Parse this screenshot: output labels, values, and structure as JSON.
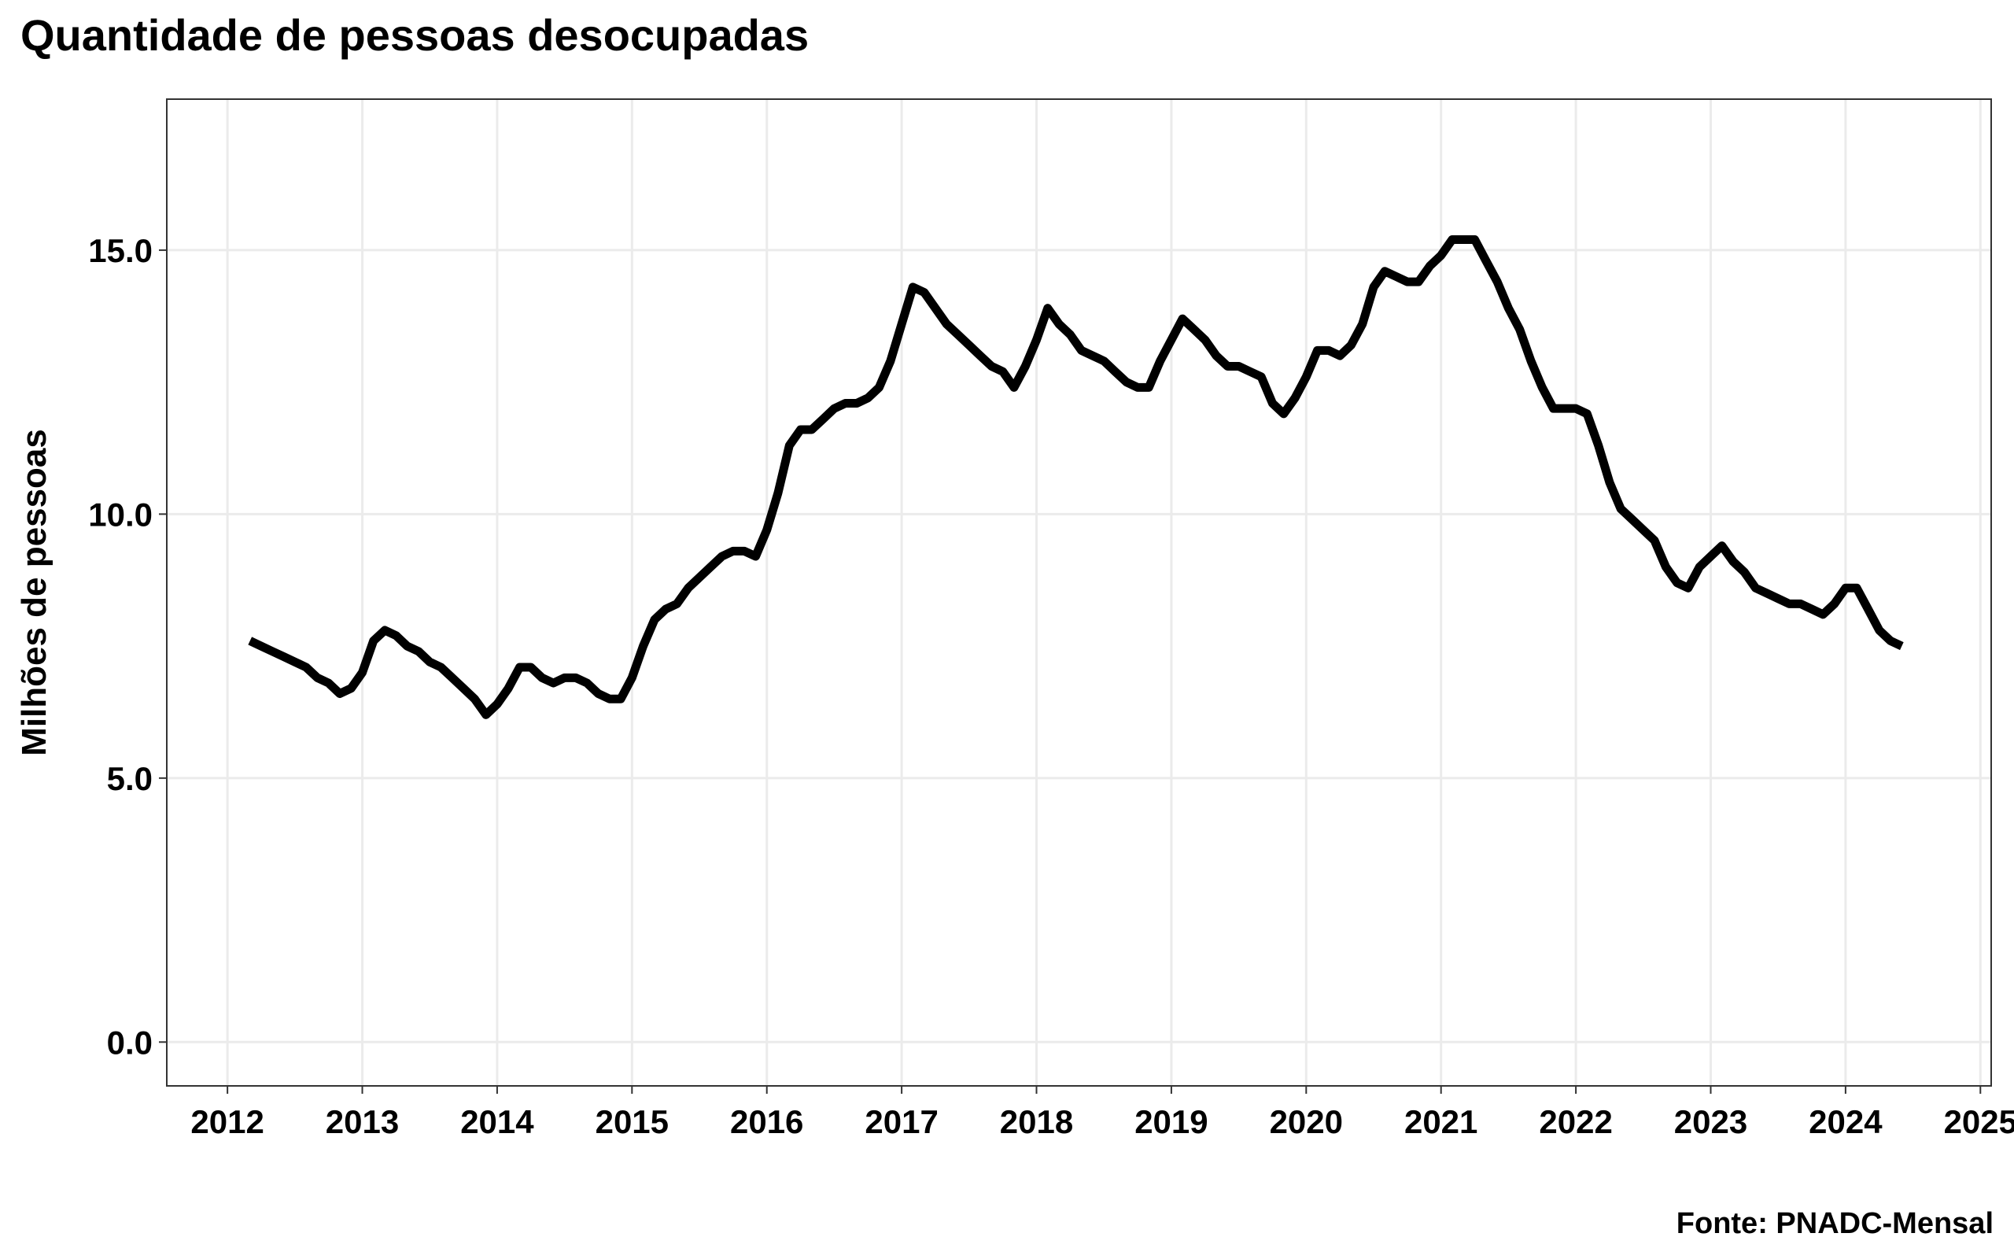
{
  "chart_data": {
    "type": "line",
    "title": "Quantidade de pessoas desocupadas",
    "y_label": "Milhões de pessoas",
    "source": "Fonte: PNADC-Mensal",
    "grid": true,
    "series": [
      {
        "color": "#000000",
        "x": [
          2012.167,
          2012.25,
          2012.333,
          2012.417,
          2012.5,
          2012.583,
          2012.667,
          2012.75,
          2012.833,
          2012.917,
          2013.0,
          2013.083,
          2013.167,
          2013.25,
          2013.333,
          2013.417,
          2013.5,
          2013.583,
          2013.667,
          2013.75,
          2013.833,
          2013.917,
          2014.0,
          2014.083,
          2014.167,
          2014.25,
          2014.333,
          2014.417,
          2014.5,
          2014.583,
          2014.667,
          2014.75,
          2014.833,
          2014.917,
          2015.0,
          2015.083,
          2015.167,
          2015.25,
          2015.333,
          2015.417,
          2015.5,
          2015.583,
          2015.667,
          2015.75,
          2015.833,
          2015.917,
          2016.0,
          2016.083,
          2016.167,
          2016.25,
          2016.333,
          2016.417,
          2016.5,
          2016.583,
          2016.667,
          2016.75,
          2016.833,
          2016.917,
          2017.0,
          2017.083,
          2017.167,
          2017.25,
          2017.333,
          2017.417,
          2017.5,
          2017.583,
          2017.667,
          2017.75,
          2017.833,
          2017.917,
          2018.0,
          2018.083,
          2018.167,
          2018.25,
          2018.333,
          2018.417,
          2018.5,
          2018.583,
          2018.667,
          2018.75,
          2018.833,
          2018.917,
          2019.0,
          2019.083,
          2019.167,
          2019.25,
          2019.333,
          2019.417,
          2019.5,
          2019.583,
          2019.667,
          2019.75,
          2019.833,
          2019.917,
          2020.0,
          2020.083,
          2020.167,
          2020.25,
          2020.333,
          2020.417,
          2020.5,
          2020.583,
          2020.667,
          2020.75,
          2020.833,
          2020.917,
          2021.0,
          2021.083,
          2021.167,
          2021.25,
          2021.333,
          2021.417,
          2021.5,
          2021.583,
          2021.667,
          2021.75,
          2021.833,
          2021.917,
          2022.0,
          2022.083,
          2022.167,
          2022.25,
          2022.333,
          2022.417,
          2022.5,
          2022.583,
          2022.667,
          2022.75,
          2022.833,
          2022.917,
          2023.0,
          2023.083,
          2023.167,
          2023.25,
          2023.333,
          2023.417,
          2023.5,
          2023.583,
          2023.667,
          2023.75,
          2023.833,
          2023.917,
          2024.0,
          2024.083,
          2024.167,
          2024.25,
          2024.333,
          2024.417
        ],
        "values": [
          7.6,
          7.5,
          7.4,
          7.3,
          7.2,
          7.1,
          6.9,
          6.8,
          6.6,
          6.7,
          7.0,
          7.6,
          7.8,
          7.7,
          7.5,
          7.4,
          7.2,
          7.1,
          6.9,
          6.7,
          6.5,
          6.2,
          6.4,
          6.7,
          7.1,
          7.1,
          6.9,
          6.8,
          6.9,
          6.9,
          6.8,
          6.6,
          6.5,
          6.5,
          6.9,
          7.5,
          8.0,
          8.2,
          8.3,
          8.6,
          8.8,
          9.0,
          9.2,
          9.3,
          9.3,
          9.2,
          9.7,
          10.4,
          11.3,
          11.6,
          11.6,
          11.8,
          12.0,
          12.1,
          12.1,
          12.2,
          12.4,
          12.9,
          13.6,
          14.3,
          14.2,
          13.9,
          13.6,
          13.4,
          13.2,
          13.0,
          12.8,
          12.7,
          12.4,
          12.8,
          13.3,
          13.9,
          13.6,
          13.4,
          13.1,
          13.0,
          12.9,
          12.7,
          12.5,
          12.4,
          12.4,
          12.9,
          13.3,
          13.7,
          13.5,
          13.3,
          13.0,
          12.8,
          12.8,
          12.7,
          12.6,
          12.1,
          11.9,
          12.2,
          12.6,
          13.1,
          13.1,
          13.0,
          13.2,
          13.6,
          14.3,
          14.6,
          14.5,
          14.4,
          14.4,
          14.7,
          14.9,
          15.2,
          15.2,
          15.2,
          14.8,
          14.4,
          13.9,
          13.5,
          12.9,
          12.4,
          12.0,
          12.0,
          12.0,
          11.9,
          11.3,
          10.6,
          10.1,
          9.9,
          9.7,
          9.5,
          9.0,
          8.7,
          8.6,
          9.0,
          9.2,
          9.4,
          9.1,
          8.9,
          8.6,
          8.5,
          8.4,
          8.3,
          8.3,
          8.2,
          8.1,
          8.3,
          8.6,
          8.6,
          8.2,
          7.8,
          7.6,
          7.5
        ]
      }
    ],
    "xlim": [
      2011.55,
      2025.08
    ],
    "xticks": [
      2012,
      2013,
      2014,
      2015,
      2016,
      2017,
      2018,
      2019,
      2020,
      2021,
      2022,
      2023,
      2024,
      2025
    ],
    "ylim": [
      -0.83,
      17.86
    ],
    "yticks": [
      {
        "value": 0,
        "label": "0.0"
      },
      {
        "value": 5,
        "label": "5.0"
      },
      {
        "value": 10,
        "label": "10.0"
      },
      {
        "value": 15,
        "label": "15.0"
      }
    ]
  }
}
